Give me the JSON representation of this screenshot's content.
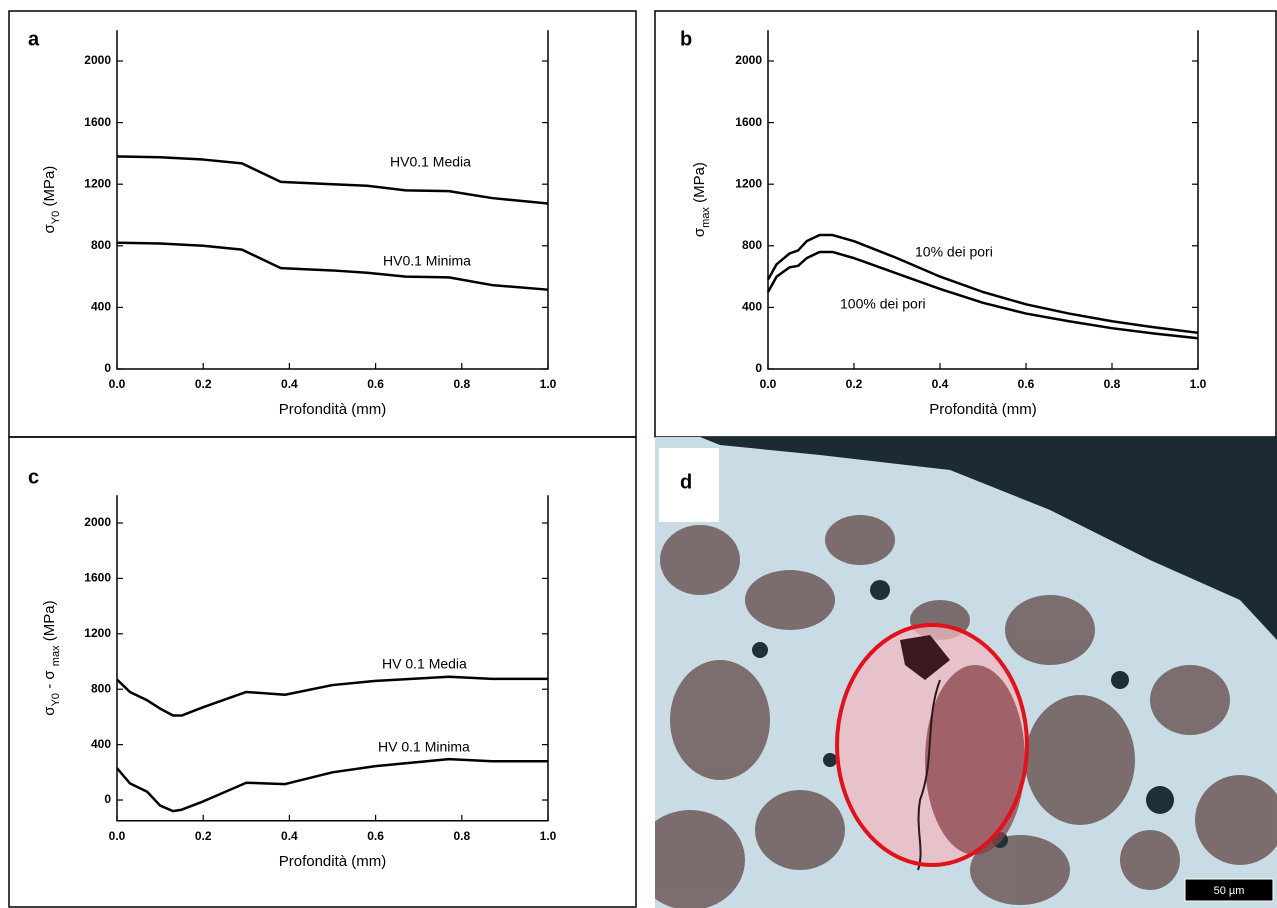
{
  "chart_data": [
    {
      "type": "line",
      "label": "a",
      "xlabel": "Profondità (mm)",
      "ylabel": [
        {
          "text": "σ"
        },
        {
          "text": "Y0",
          "sub": true
        },
        {
          "text": " (MPa)"
        }
      ],
      "xlim": [
        0,
        1
      ],
      "ylim": [
        0,
        2200
      ],
      "xticks": [
        {
          "value": 0,
          "label": "0.0"
        },
        {
          "value": 0.2,
          "label": "0.2"
        },
        {
          "value": 0.4,
          "label": "0.4"
        },
        {
          "value": 0.6,
          "label": "0.6"
        },
        {
          "value": 0.8,
          "label": "0.8"
        },
        {
          "value": 1,
          "label": "1.0"
        }
      ],
      "yticks": [
        0,
        400,
        800,
        1200,
        1600,
        2000
      ],
      "annotations": [
        "HV0.1 Media",
        "HV0.1 Minima"
      ],
      "series": [
        {
          "color": "#000000",
          "x": [
            0,
            0.1,
            0.2,
            0.29,
            0.38,
            0.5,
            0.58,
            0.67,
            0.77,
            0.87,
            1.0
          ],
          "values": [
            1380,
            1375,
            1360,
            1335,
            1215,
            1200,
            1190,
            1160,
            1155,
            1110,
            1075
          ]
        },
        {
          "color": "#000000",
          "x": [
            0,
            0.1,
            0.2,
            0.29,
            0.38,
            0.5,
            0.58,
            0.67,
            0.77,
            0.87,
            1.0
          ],
          "values": [
            820,
            815,
            800,
            775,
            655,
            640,
            625,
            600,
            595,
            545,
            515
          ]
        }
      ]
    },
    {
      "type": "line",
      "label": "b",
      "xlabel": "Profondità (mm)",
      "ylabel": [
        {
          "text": "σ"
        },
        {
          "text": "max",
          "sub": true
        },
        {
          "text": " (MPa)"
        }
      ],
      "xlim": [
        0,
        1
      ],
      "ylim": [
        0,
        2200
      ],
      "xticks": [
        {
          "value": 0,
          "label": "0.0"
        },
        {
          "value": 0.2,
          "label": "0.2"
        },
        {
          "value": 0.4,
          "label": "0.4"
        },
        {
          "value": 0.6,
          "label": "0.6"
        },
        {
          "value": 0.8,
          "label": "0.8"
        },
        {
          "value": 1,
          "label": "1.0"
        }
      ],
      "yticks": [
        0,
        400,
        800,
        1200,
        1600,
        2000
      ],
      "annotations": [
        "10% dei pori",
        "100% dei pori"
      ],
      "series": [
        {
          "color": "#000000",
          "x": [
            0,
            0.02,
            0.05,
            0.07,
            0.09,
            0.12,
            0.15,
            0.2,
            0.3,
            0.4,
            0.5,
            0.6,
            0.7,
            0.8,
            0.9,
            1.0
          ],
          "values": [
            580,
            680,
            750,
            770,
            830,
            870,
            870,
            830,
            720,
            600,
            500,
            420,
            360,
            310,
            270,
            235
          ]
        },
        {
          "color": "#000000",
          "x": [
            0,
            0.02,
            0.05,
            0.07,
            0.09,
            0.12,
            0.15,
            0.2,
            0.3,
            0.4,
            0.5,
            0.6,
            0.7,
            0.8,
            0.9,
            1.0
          ],
          "values": [
            500,
            600,
            660,
            670,
            720,
            760,
            760,
            720,
            620,
            520,
            430,
            360,
            310,
            265,
            230,
            200
          ]
        }
      ]
    },
    {
      "type": "line",
      "label": "c",
      "xlabel": "Profondità (mm)",
      "ylabel": [
        {
          "text": "σ"
        },
        {
          "text": "Y0",
          "sub": true
        },
        {
          "text": " - σ "
        },
        {
          "text": "max",
          "sub": true
        },
        {
          "text": " (MPa)"
        }
      ],
      "xlim": [
        0,
        1
      ],
      "ylim": [
        -150,
        2200
      ],
      "xticks": [
        {
          "value": 0,
          "label": "0.0"
        },
        {
          "value": 0.2,
          "label": "0.2"
        },
        {
          "value": 0.4,
          "label": "0.4"
        },
        {
          "value": 0.6,
          "label": "0.6"
        },
        {
          "value": 0.8,
          "label": "0.8"
        },
        {
          "value": 1,
          "label": "1.0"
        }
      ],
      "yticks": [
        0,
        400,
        800,
        1200,
        1600,
        2000
      ],
      "annotations": [
        "HV 0.1 Media",
        "HV 0.1 Minima"
      ],
      "series": [
        {
          "color": "#000000",
          "x": [
            0,
            0.03,
            0.07,
            0.1,
            0.13,
            0.15,
            0.2,
            0.3,
            0.39,
            0.5,
            0.6,
            0.77,
            0.87,
            1.0
          ],
          "values": [
            870,
            780,
            720,
            660,
            610,
            610,
            670,
            780,
            760,
            830,
            860,
            890,
            875,
            875
          ]
        },
        {
          "color": "#000000",
          "x": [
            0,
            0.03,
            0.07,
            0.1,
            0.13,
            0.15,
            0.2,
            0.3,
            0.39,
            0.5,
            0.6,
            0.77,
            0.87,
            1.0
          ],
          "values": [
            230,
            120,
            60,
            -40,
            -80,
            -70,
            -10,
            125,
            115,
            200,
            245,
            295,
            280,
            280
          ]
        }
      ]
    }
  ],
  "image_panel": {
    "label": "d",
    "scale_bar": "50 µm"
  }
}
